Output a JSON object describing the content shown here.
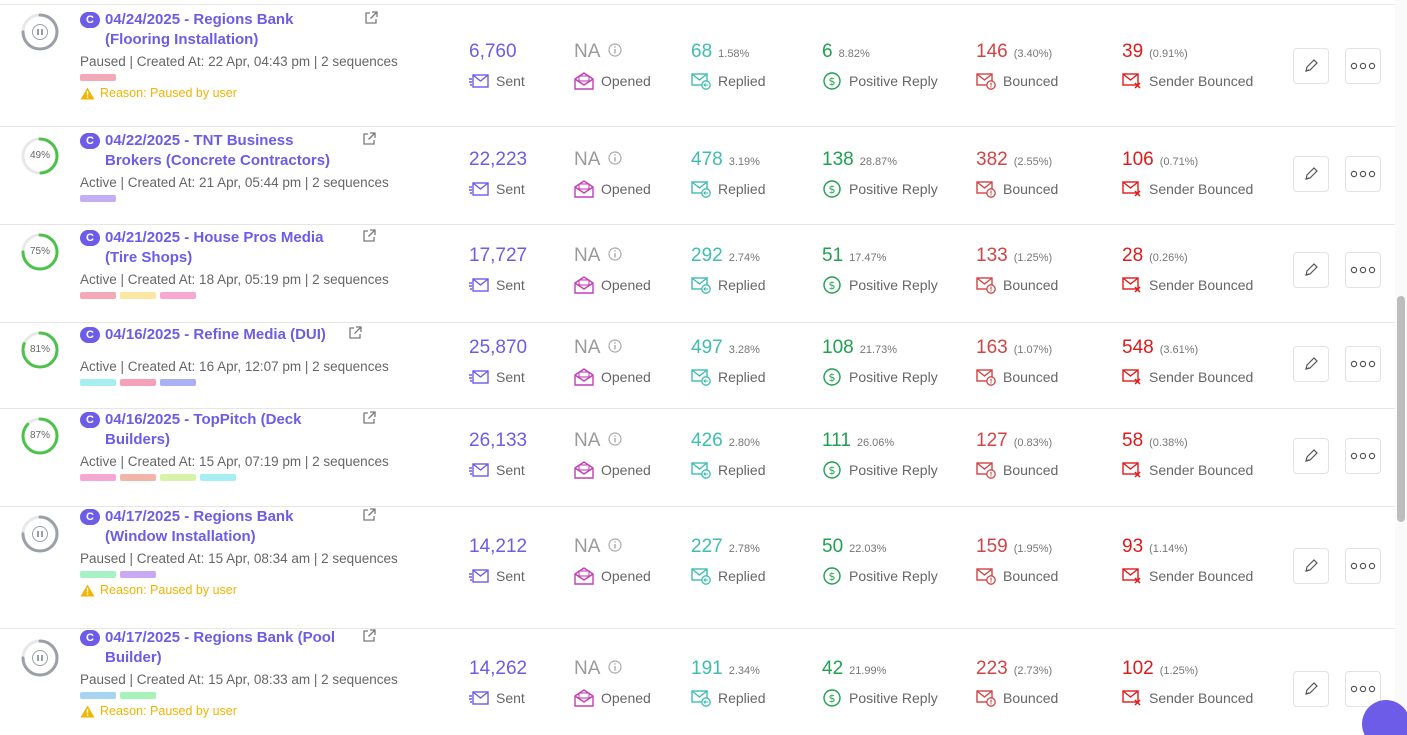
{
  "labels": {
    "sent": "Sent",
    "opened": "Opened",
    "replied": "Replied",
    "positive_reply": "Positive Reply",
    "bounced": "Bounced",
    "sender_bounced": "Sender Bounced",
    "badge": "C",
    "reason": "Reason: Paused by user"
  },
  "colors": {
    "accent": "#6c5ce7",
    "replied": "#3ebdb0",
    "positive": "#20a050",
    "bounced": "#d04545",
    "sender_bounced": "#e01a1a",
    "warning": "#f1b400"
  },
  "campaigns": [
    {
      "title_line1": "04/24/2025 - Regions Bank",
      "title_line2": "(Flooring Installation)",
      "meta": "Paused | Created At: 22 Apr, 04:43 pm | 2 sequences",
      "status": "paused",
      "progress_label": "",
      "tags": [
        "#f4a9b8"
      ],
      "show_reason": true,
      "sent": "6,760",
      "opened": "NA",
      "replied": "68",
      "replied_pct": "1.58%",
      "positive": "6",
      "positive_pct": "8.82%",
      "bounced": "146",
      "bounced_pct": "(3.40%)",
      "sender_bounced": "39",
      "sender_bounced_pct": "(0.91%)"
    },
    {
      "title_line1": "04/22/2025 - TNT Business",
      "title_line2": "Brokers (Concrete Contractors)",
      "meta": "Active | Created At: 21 Apr, 05:44 pm | 2 sequences",
      "status": "active",
      "progress": 49,
      "progress_label": "49%",
      "tags": [
        "#c3aef5"
      ],
      "show_reason": false,
      "sent": "22,223",
      "opened": "NA",
      "replied": "478",
      "replied_pct": "3.19%",
      "positive": "138",
      "positive_pct": "28.87%",
      "bounced": "382",
      "bounced_pct": "(2.55%)",
      "sender_bounced": "106",
      "sender_bounced_pct": "(0.71%)"
    },
    {
      "title_line1": "04/21/2025 - House Pros Media",
      "title_line2": "(Tire Shops)",
      "meta": "Active | Created At: 18 Apr, 05:19 pm | 2 sequences",
      "status": "active",
      "progress": 75,
      "progress_label": "75%",
      "tags": [
        "#f4a9b8",
        "#fbe7a1",
        "#f7a8d2"
      ],
      "show_reason": false,
      "sent": "17,727",
      "opened": "NA",
      "replied": "292",
      "replied_pct": "2.74%",
      "positive": "51",
      "positive_pct": "17.47%",
      "bounced": "133",
      "bounced_pct": "(1.25%)",
      "sender_bounced": "28",
      "sender_bounced_pct": "(0.26%)"
    },
    {
      "title_line1": "04/16/2025 - Refine Media (DUI)",
      "title_line2": "",
      "meta": "Active | Created At: 16 Apr, 12:07 pm | 2 sequences",
      "status": "active",
      "progress": 81,
      "progress_label": "81%",
      "tags": [
        "#a6eef2",
        "#f4a0b8",
        "#aab0f4"
      ],
      "show_reason": false,
      "sent": "25,870",
      "opened": "NA",
      "replied": "497",
      "replied_pct": "3.28%",
      "positive": "108",
      "positive_pct": "21.73%",
      "bounced": "163",
      "bounced_pct": "(1.07%)",
      "sender_bounced": "548",
      "sender_bounced_pct": "(3.61%)"
    },
    {
      "title_line1": "04/16/2025 - TopPitch (Deck",
      "title_line2": "Builders)",
      "meta": "Active | Created At: 15 Apr, 07:19 pm | 2 sequences",
      "status": "active",
      "progress": 87,
      "progress_label": "87%",
      "tags": [
        "#f7a8d2",
        "#f2b6a8",
        "#d6f3a8",
        "#a6eef2"
      ],
      "show_reason": false,
      "sent": "26,133",
      "opened": "NA",
      "replied": "426",
      "replied_pct": "2.80%",
      "positive": "111",
      "positive_pct": "26.06%",
      "bounced": "127",
      "bounced_pct": "(0.83%)",
      "sender_bounced": "58",
      "sender_bounced_pct": "(0.38%)"
    },
    {
      "title_line1": "04/17/2025 - Regions Bank",
      "title_line2": "(Window Installation)",
      "meta": "Paused | Created At: 15 Apr, 08:34 am | 2 sequences",
      "status": "paused",
      "progress_label": "",
      "tags": [
        "#a6f2c6",
        "#c9a8f4"
      ],
      "show_reason": true,
      "sent": "14,212",
      "opened": "NA",
      "replied": "227",
      "replied_pct": "2.78%",
      "positive": "50",
      "positive_pct": "22.03%",
      "bounced": "159",
      "bounced_pct": "(1.95%)",
      "sender_bounced": "93",
      "sender_bounced_pct": "(1.14%)"
    },
    {
      "title_line1": "04/17/2025 - Regions Bank (Pool",
      "title_line2": "Builder)",
      "meta": "Paused | Created At: 15 Apr, 08:33 am | 2 sequences",
      "status": "paused",
      "progress_label": "",
      "tags": [
        "#a8d4f4",
        "#a6f2b8"
      ],
      "show_reason": true,
      "sent": "14,262",
      "opened": "NA",
      "replied": "191",
      "replied_pct": "2.34%",
      "positive": "42",
      "positive_pct": "21.99%",
      "bounced": "223",
      "bounced_pct": "(2.73%)",
      "sender_bounced": "102",
      "sender_bounced_pct": "(1.25%)"
    }
  ]
}
